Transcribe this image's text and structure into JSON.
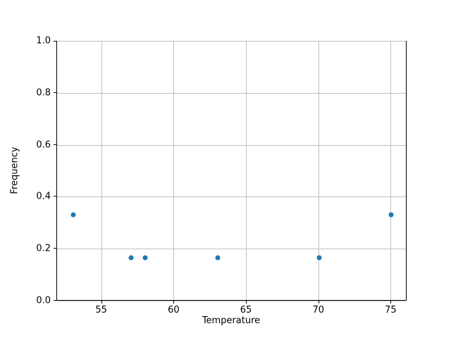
{
  "figure": {
    "background_color": "#ffffff",
    "spine_color": "#000000",
    "text_color": "#000000"
  },
  "chart_data": {
    "type": "scatter",
    "title": "",
    "xlabel": "Temperature",
    "ylabel": "Frequency",
    "x": [
      53,
      57,
      58,
      63,
      70,
      75
    ],
    "y": [
      0.333,
      0.167,
      0.167,
      0.167,
      0.167,
      0.333
    ],
    "xlim": [
      51.9,
      76.1
    ],
    "ylim": [
      0.0,
      1.0
    ],
    "xticks": [
      55,
      60,
      65,
      70,
      75
    ],
    "xtick_labels": [
      "55",
      "60",
      "65",
      "70",
      "75"
    ],
    "yticks": [
      0.0,
      0.2,
      0.4,
      0.6,
      0.8,
      1.0
    ],
    "ytick_labels": [
      "0.0",
      "0.2",
      "0.4",
      "0.6",
      "0.8",
      "1.0"
    ],
    "grid": true,
    "legend": null,
    "marker_color": "#1f77b4",
    "grid_color": "#c0c0c0"
  }
}
